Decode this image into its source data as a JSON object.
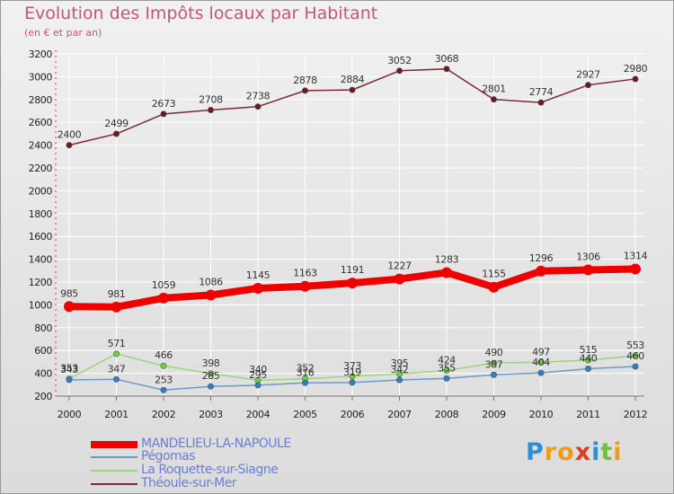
{
  "chart_data": {
    "type": "line",
    "title": "Evolution des Impôts locaux par Habitant",
    "subtitle": "(en € et par an)",
    "x": [
      "2000",
      "2001",
      "2002",
      "2003",
      "2004",
      "2005",
      "2006",
      "2007",
      "2008",
      "2009",
      "2010",
      "2011",
      "2012"
    ],
    "ylim": [
      200,
      3200
    ],
    "yticks": [
      200,
      400,
      600,
      800,
      1000,
      1200,
      1400,
      1600,
      1800,
      2000,
      2200,
      2400,
      2600,
      2800,
      3000,
      3200
    ],
    "series": [
      {
        "name": "Théoule-sur-Mer",
        "color": "#7a2a32",
        "marker": "#6b1a22",
        "values": [
          2400,
          2499,
          2673,
          2708,
          2738,
          2878,
          2884,
          3052,
          3068,
          2801,
          2774,
          2927,
          2980
        ],
        "labels": [
          "2400",
          "2499",
          "2673",
          "2708",
          "2738",
          "2878",
          "2884",
          "3052",
          "3068",
          "2801",
          "2774",
          "2927",
          "2980"
        ]
      },
      {
        "name": "La Roquette-sur-Siagne",
        "color": "#9ad67a",
        "marker": "#6fd23a",
        "values": [
          353,
          571,
          466,
          398,
          340,
          352,
          373,
          395,
          424,
          490,
          497,
          515,
          553
        ],
        "labels": [
          "353",
          "571",
          "466",
          "398",
          "340",
          "352",
          "373",
          "395",
          "424",
          "490",
          "497",
          "515",
          "553"
        ]
      },
      {
        "name": "Pégomas",
        "color": "#6a9acb",
        "marker": "#2f7fc6",
        "values": [
          343,
          347,
          253,
          285,
          295,
          316,
          319,
          342,
          355,
          387,
          404,
          440,
          460
        ],
        "labels": [
          "343",
          "347",
          "253",
          "285",
          "295",
          "316",
          "319",
          "342",
          "355",
          "387",
          "404",
          "440",
          "460"
        ]
      },
      {
        "name": "MANDELIEU-LA-NAPOULE",
        "color": "#ee0000",
        "marker": "#ee0000",
        "values": [
          985,
          981,
          1059,
          1086,
          1145,
          1163,
          1191,
          1227,
          1283,
          1155,
          1296,
          1306,
          1314
        ],
        "labels": [
          "985",
          "981",
          "1059",
          "1086",
          "1145",
          "1163",
          "1191",
          "1227",
          "1283",
          "1155",
          "1296",
          "1306",
          "1314"
        ]
      }
    ],
    "legend": [
      {
        "name": "MANDELIEU-LA-NAPOULE",
        "color": "#ee0000",
        "thick": true
      },
      {
        "name": "Pégomas",
        "color": "#6a9acb",
        "thick": false
      },
      {
        "name": "La Roquette-sur-Siagne",
        "color": "#9ad67a",
        "thick": false
      },
      {
        "name": "Théoule-sur-Mer",
        "color": "#7a2a32",
        "thick": false
      }
    ],
    "legend_position": "bottom-left"
  },
  "logo": {
    "text": "Proxiti",
    "letters": [
      {
        "ch": "P",
        "color": "#2c8fd8"
      },
      {
        "ch": "r",
        "color": "#f29a1c"
      },
      {
        "ch": "o",
        "color": "#f29a1c"
      },
      {
        "ch": "x",
        "color": "#e23a1c"
      },
      {
        "ch": "i",
        "color": "#2c8fd8"
      },
      {
        "ch": "t",
        "color": "#6cc23a"
      },
      {
        "ch": "i",
        "color": "#f29a1c"
      }
    ]
  }
}
